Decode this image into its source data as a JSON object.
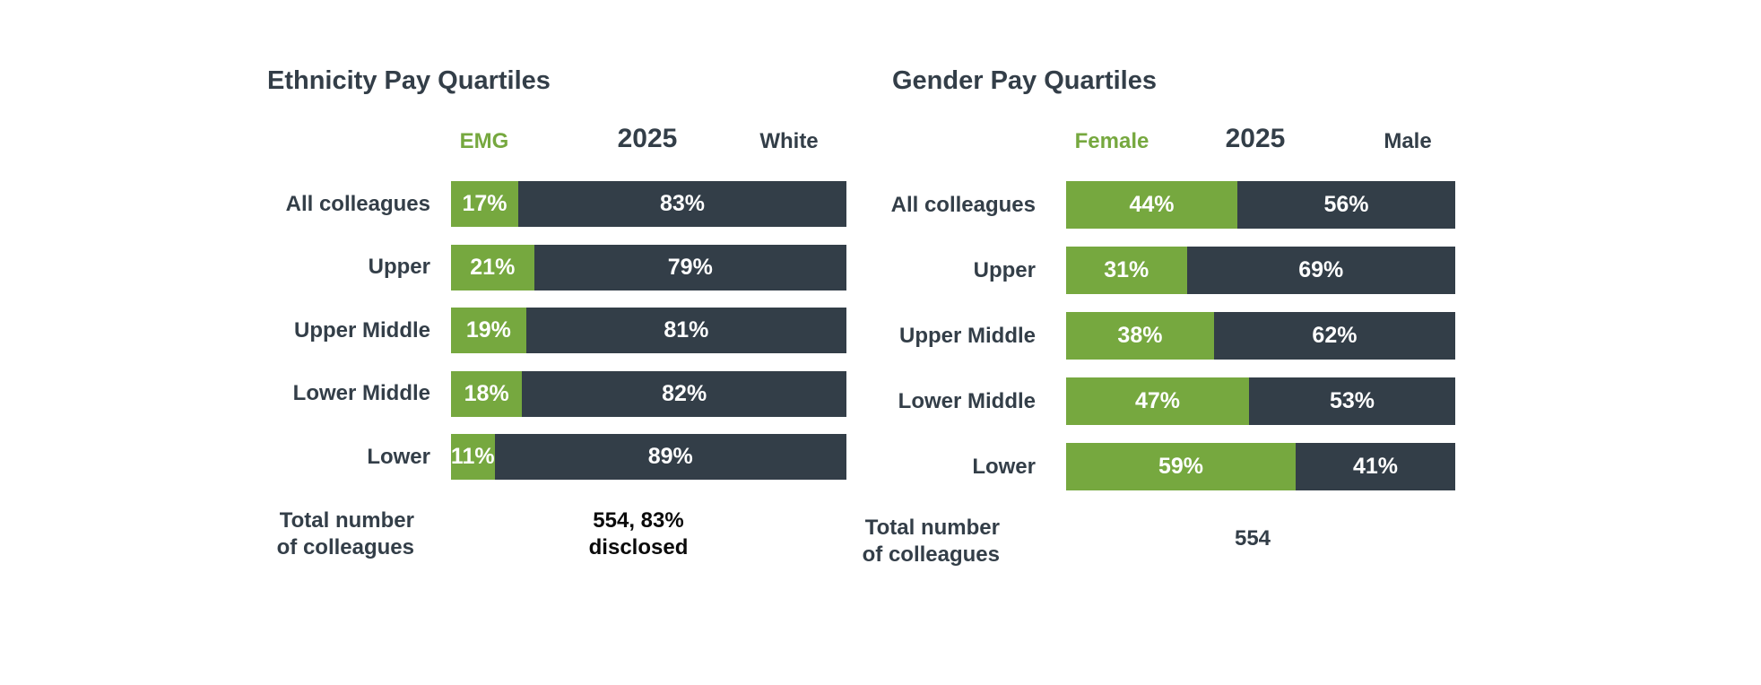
{
  "colors": {
    "green": "#76A83F",
    "dark_slate": "#333E48",
    "text": "#333E48",
    "total_value_black": "#0A0A0A",
    "background": "#FFFFFF",
    "bar_label": "#FFFFFF"
  },
  "chart_data": [
    {
      "type": "bar",
      "orientation": "horizontal",
      "stacked": true,
      "grid": false,
      "legend_position": "top",
      "title": "Ethnicity Pay Quartiles",
      "year": "2025",
      "unit": "%",
      "xlim": [
        0,
        100
      ],
      "categories": [
        "All colleagues",
        "Upper",
        "Upper Middle",
        "Lower Middle",
        "Lower"
      ],
      "series": [
        {
          "name": "EMG",
          "color": "#76A83F",
          "values": [
            17,
            21,
            19,
            18,
            11
          ]
        },
        {
          "name": "White",
          "color": "#333E48",
          "values": [
            83,
            79,
            81,
            82,
            89
          ]
        }
      ],
      "total_label_lines": [
        "Total number",
        "of colleagues"
      ],
      "total_value_lines": [
        "554, 83%",
        "disclosed"
      ]
    },
    {
      "type": "bar",
      "orientation": "horizontal",
      "stacked": true,
      "grid": false,
      "legend_position": "top",
      "title": "Gender Pay Quartiles",
      "year": "2025",
      "unit": "%",
      "xlim": [
        0,
        100
      ],
      "categories": [
        "All colleagues",
        "Upper",
        "Upper Middle",
        "Lower Middle",
        "Lower"
      ],
      "series": [
        {
          "name": "Female",
          "color": "#76A83F",
          "values": [
            44,
            31,
            38,
            47,
            59
          ]
        },
        {
          "name": "Male",
          "color": "#333E48",
          "values": [
            56,
            69,
            62,
            53,
            41
          ]
        }
      ],
      "total_label_lines": [
        "Total number",
        "of colleagues"
      ],
      "total_value_lines": [
        "554"
      ]
    }
  ]
}
